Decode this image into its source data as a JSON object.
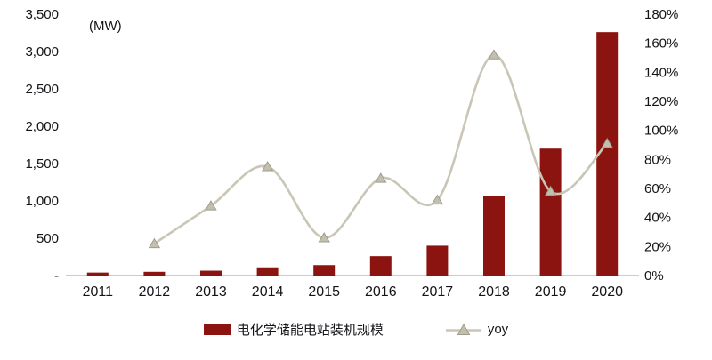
{
  "chart": {
    "colors": {
      "bar": "#8B1410",
      "line": "#C9C6B6",
      "marker_fill": "#C2BFAE",
      "marker_stroke": "#9F9C8C",
      "text": "#141419",
      "axis_line": "#9A9A9A"
    },
    "legend": [
      {
        "label": "电化学储能电站装机规模",
        "type": "bar"
      },
      {
        "label": "yoy",
        "type": "line"
      }
    ]
  },
  "chart_data": {
    "type": "bar+line",
    "title": "",
    "categories": [
      "2011",
      "2012",
      "2013",
      "2014",
      "2015",
      "2016",
      "2017",
      "2018",
      "2019",
      "2020"
    ],
    "series": [
      {
        "name": "电化学储能电站装机规模",
        "type": "bar",
        "axis": "left",
        "values": [
          40,
          50,
          65,
          110,
          140,
          260,
          400,
          1060,
          1700,
          3260
        ]
      },
      {
        "name": "yoy",
        "type": "line",
        "axis": "right",
        "values": [
          null,
          22,
          48,
          75,
          26,
          67,
          52,
          152,
          58,
          91
        ]
      }
    ],
    "left_axis": {
      "label": "(MW)",
      "min": 0,
      "max": 3500,
      "tick_step": 500,
      "ticks": [
        "-",
        "500",
        "1,000",
        "1,500",
        "2,000",
        "2,500",
        "3,000",
        "3,500"
      ]
    },
    "right_axis": {
      "min": 0,
      "max": 180,
      "tick_step": 20,
      "ticks": [
        "0%",
        "20%",
        "40%",
        "60%",
        "80%",
        "100%",
        "120%",
        "140%",
        "160%",
        "180%"
      ]
    },
    "grid": false,
    "legend_position": "bottom"
  }
}
